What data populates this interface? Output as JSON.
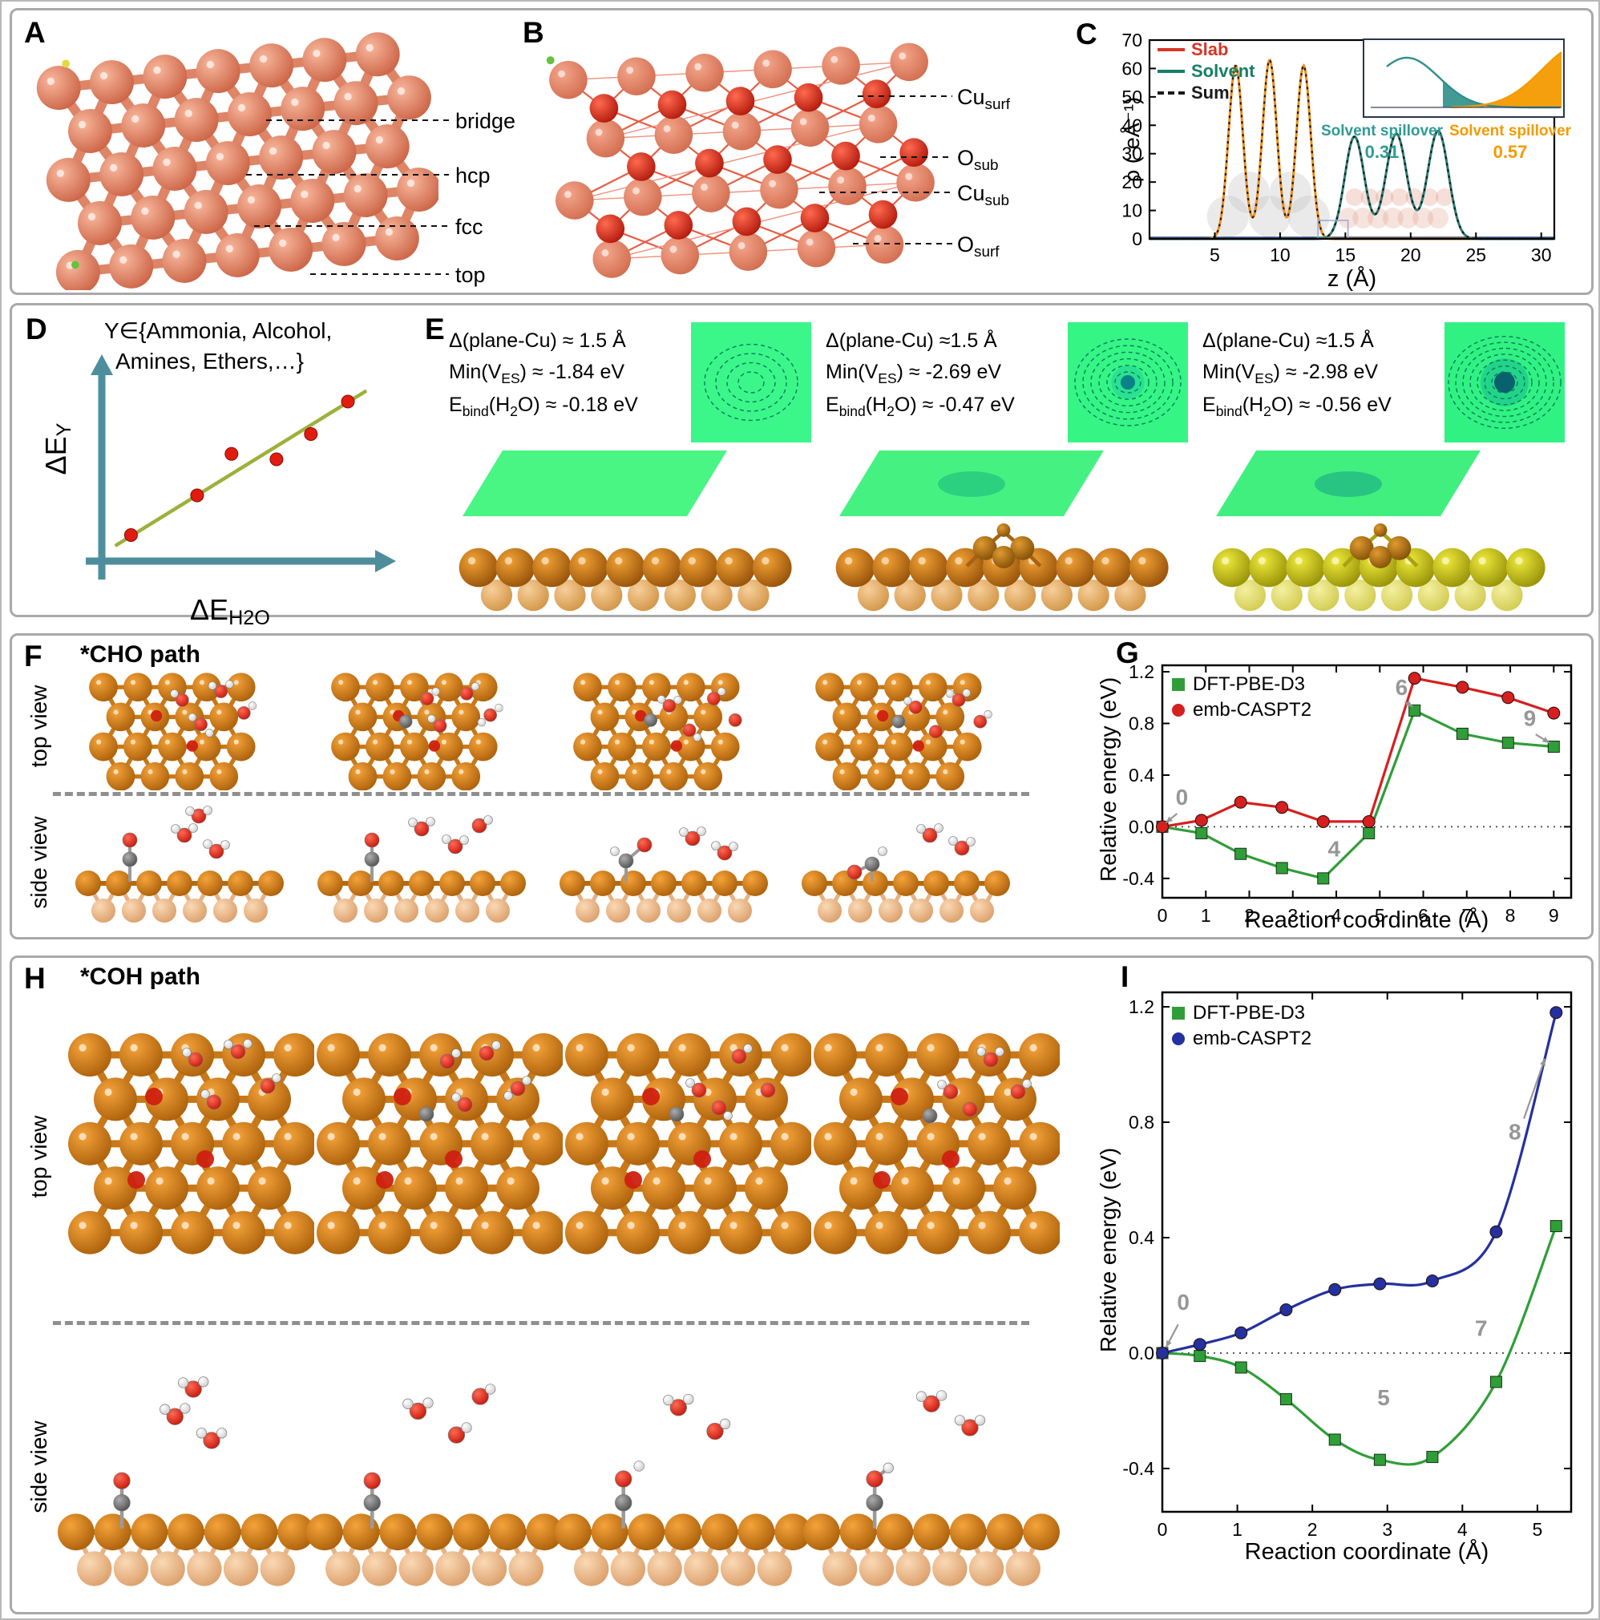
{
  "panel_a": {
    "letter": "A",
    "site_labels": [
      "bridge",
      "hcp",
      "fcc",
      "top"
    ]
  },
  "panel_b": {
    "letter": "B",
    "atom_labels": [
      {
        "main": "Cu",
        "sub": "surf"
      },
      {
        "main": "O",
        "sub": "sub"
      },
      {
        "main": "Cu",
        "sub": "sub"
      },
      {
        "main": "O",
        "sub": "surf"
      }
    ]
  },
  "panel_c": {
    "letter": "C",
    "legend": [
      {
        "label": "Slab",
        "color": "#d93425"
      },
      {
        "label": "Solvent",
        "color": "#157f66"
      },
      {
        "label": "Sum",
        "color": "#1a1a1a"
      }
    ],
    "inset": {
      "left_label": "Solvent spillover",
      "left_value": "0.31",
      "left_color": "#2e9b94",
      "right_label": "Solvent spillover",
      "right_value": "0.57",
      "right_color": "#f59a00"
    }
  },
  "panel_d": {
    "letter": "D",
    "set_line1": "Y∈{Ammonia, Alcohol,",
    "set_line2": "Amines, Ethers,…}",
    "ylabel_main": "ΔE",
    "ylabel_sub": "Y",
    "xlabel_main": "ΔE",
    "xlabel_sub": "H2O"
  },
  "panel_e": {
    "letter": "E",
    "columns": [
      {
        "delta": "Δ(plane-Cu) ≈ 1.5 Å",
        "min_pre": "Min(V",
        "min_sub": "ES",
        "min_post": ") ≈ -1.84 eV",
        "eb_pre": "E",
        "eb_sub": "bind",
        "eb_mid": "(H",
        "eb_sub2": "2",
        "eb_post": "O) ≈ -0.18 eV"
      },
      {
        "delta": "Δ(plane-Cu) ≈1.5 Å",
        "min_pre": "Min(V",
        "min_sub": "ES",
        "min_post": ") ≈ -2.69 eV",
        "eb_pre": "E",
        "eb_sub": "bind",
        "eb_mid": "(H",
        "eb_sub2": "2",
        "eb_post": "O) ≈ -0.47 eV"
      },
      {
        "delta": "Δ(plane-Cu) ≈1.5 Å",
        "min_pre": "Min(V",
        "min_sub": "ES",
        "min_post": ") ≈ -2.98 eV",
        "eb_pre": "E",
        "eb_sub": "bind",
        "eb_mid": "(H",
        "eb_sub2": "2",
        "eb_post": "O) ≈ -0.56 eV"
      }
    ]
  },
  "panel_f": {
    "letter": "F",
    "title": "*CHO path",
    "row1": "top view",
    "row2": "side view"
  },
  "panel_g": {
    "letter": "G"
  },
  "panel_h": {
    "letter": "H",
    "title": "*COH path",
    "row1": "top view",
    "row2": "side view"
  },
  "panel_i": {
    "letter": "I"
  },
  "chart_data": [
    {
      "id": "density_profile",
      "panel": "C",
      "type": "line",
      "xlabel": "z (Å)",
      "ylabel": "ρ (-eÅ⁻¹)",
      "xlim": [
        0,
        31
      ],
      "ylim": [
        0,
        70
      ],
      "xticks": [
        5,
        10,
        15,
        20,
        25,
        30
      ],
      "yticks": [
        0,
        10,
        20,
        30,
        40,
        50,
        60,
        70
      ],
      "series": [
        {
          "name": "Slab",
          "color": "#ef8c1a",
          "legend_color": "#d93425",
          "peaks": [
            {
              "center": 6.6,
              "amp": 61,
              "sigma": 0.55
            },
            {
              "center": 9.2,
              "amp": 63,
              "sigma": 0.55
            },
            {
              "center": 11.8,
              "amp": 61,
              "sigma": 0.55
            }
          ]
        },
        {
          "name": "Solvent",
          "color": "#2a7d72",
          "peaks": [
            {
              "center": 15.7,
              "amp": 36,
              "sigma": 0.75
            },
            {
              "center": 18.9,
              "amp": 37,
              "sigma": 0.8
            },
            {
              "center": 22.1,
              "amp": 38,
              "sigma": 0.8
            }
          ]
        },
        {
          "name": "Sum",
          "color": "#1a1a1a",
          "dashed": true,
          "derived": "sum"
        }
      ],
      "inset_values": {
        "solvent_spillover_left": 0.31,
        "solvent_spillover_right": 0.57
      }
    },
    {
      "id": "schematic_correlation",
      "panel": "D",
      "type": "scatter",
      "xlabel": "ΔE_H2O",
      "ylabel": "ΔE_Y",
      "points": [
        [
          0.08,
          0.1
        ],
        [
          0.33,
          0.32
        ],
        [
          0.46,
          0.55
        ],
        [
          0.63,
          0.52
        ],
        [
          0.76,
          0.66
        ],
        [
          0.9,
          0.84
        ]
      ],
      "trend": [
        [
          0.02,
          0.04
        ],
        [
          0.97,
          0.9
        ]
      ]
    },
    {
      "id": "cho_energy",
      "panel": "G",
      "type": "line",
      "xlabel": "Reaction coordinate (Å)",
      "ylabel": "Relative energy (eV)",
      "xlim": [
        0,
        9.4
      ],
      "ylim": [
        -0.55,
        1.25
      ],
      "xticks": [
        0,
        1,
        2,
        3,
        4,
        5,
        6,
        7,
        8,
        9
      ],
      "yticks": [
        "-0.4",
        "0.0",
        "0.4",
        "0.8",
        "1.2"
      ],
      "zero_line": true,
      "series": [
        {
          "name": "DFT-PBE-D3",
          "color": "#2f9e38",
          "marker": "square",
          "x": [
            0,
            0.9,
            1.8,
            2.75,
            3.7,
            4.75,
            5.8,
            6.9,
            7.95,
            9.0
          ],
          "y": [
            0.0,
            -0.05,
            -0.21,
            -0.32,
            -0.4,
            -0.05,
            0.9,
            0.72,
            0.65,
            0.62
          ]
        },
        {
          "name": "emb-CASPT2",
          "color": "#d61f1f",
          "marker": "circle",
          "x": [
            0,
            0.9,
            1.8,
            2.75,
            3.7,
            4.75,
            5.8,
            6.9,
            7.95,
            9.0
          ],
          "y": [
            0.0,
            0.05,
            0.19,
            0.15,
            0.04,
            0.04,
            1.15,
            1.08,
            1.0,
            0.88
          ]
        }
      ],
      "annotations": [
        {
          "text": "0",
          "x": 0.45,
          "y": 0.17,
          "arrow_to": [
            0.08,
            0.03
          ]
        },
        {
          "text": "4",
          "x": 3.95,
          "y": -0.23
        },
        {
          "text": "6",
          "x": 5.5,
          "y": 1.02,
          "arrow_to": [
            5.76,
            0.93
          ]
        },
        {
          "text": "9",
          "x": 8.45,
          "y": 0.78,
          "arrow_to": [
            8.9,
            0.65
          ]
        }
      ]
    },
    {
      "id": "coh_energy",
      "panel": "I",
      "type": "line",
      "xlabel": "Reaction coordinate (Å)",
      "ylabel": "Relative energy (eV)",
      "xlim": [
        0,
        5.45
      ],
      "ylim": [
        -0.55,
        1.25
      ],
      "xticks": [
        0,
        1,
        2,
        3,
        4,
        5
      ],
      "yticks": [
        "-0.4",
        "0.0",
        "0.4",
        "0.8",
        "1.2"
      ],
      "zero_line": true,
      "smooth": true,
      "series": [
        {
          "name": "DFT-PBE-D3",
          "color": "#2f9e38",
          "marker": "square",
          "x": [
            0,
            0.5,
            1.05,
            1.65,
            2.3,
            2.9,
            3.6,
            4.45,
            5.25
          ],
          "y": [
            0.0,
            -0.01,
            -0.05,
            -0.16,
            -0.3,
            -0.37,
            -0.36,
            -0.1,
            0.44
          ]
        },
        {
          "name": "emb-CASPT2",
          "color": "#24319e",
          "marker": "circle",
          "x": [
            0,
            0.5,
            1.05,
            1.65,
            2.3,
            2.9,
            3.6,
            4.45,
            5.25
          ],
          "y": [
            0.0,
            0.03,
            0.07,
            0.15,
            0.22,
            0.24,
            0.25,
            0.42,
            1.18
          ]
        }
      ],
      "annotations": [
        {
          "text": "0",
          "x": 0.28,
          "y": 0.15,
          "arrow_to": [
            0.05,
            0.02
          ]
        },
        {
          "text": "5",
          "x": 2.95,
          "y": -0.18
        },
        {
          "text": "7",
          "x": 4.25,
          "y": 0.06
        },
        {
          "text": "8",
          "x": 4.7,
          "y": 0.74,
          "arrow_to": [
            5.1,
            1.02
          ]
        }
      ]
    }
  ]
}
